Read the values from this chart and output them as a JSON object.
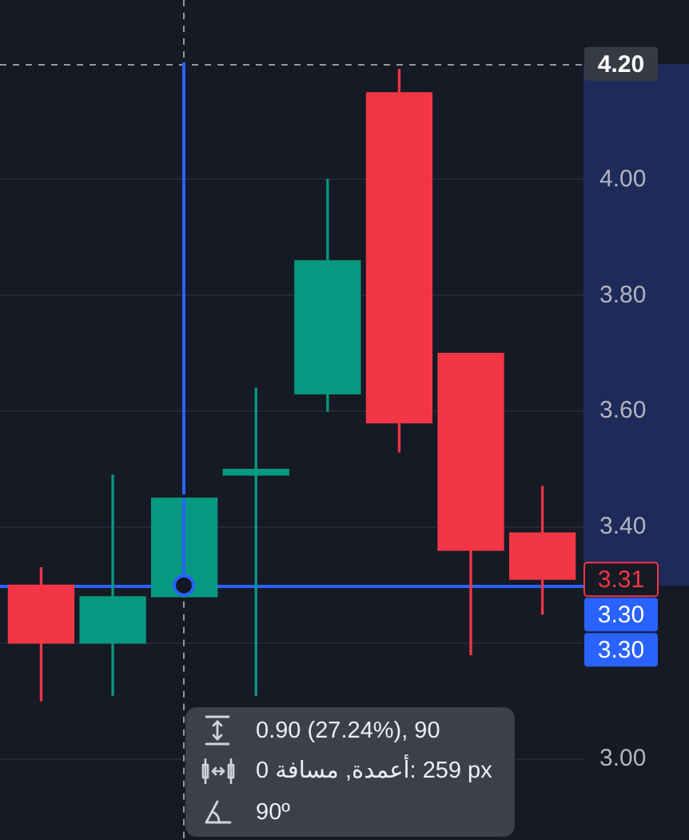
{
  "chart_data": {
    "type": "candlestick",
    "categories": [
      null,
      null,
      null,
      null,
      null,
      null,
      null,
      null
    ],
    "ohlc": [
      [
        3.3,
        3.33,
        3.1,
        3.2
      ],
      [
        3.2,
        3.49,
        3.11,
        3.28
      ],
      [
        3.28,
        3.45,
        3.28,
        3.45
      ],
      [
        3.49,
        3.64,
        3.11,
        3.5
      ],
      [
        3.63,
        4.0,
        3.6,
        3.86
      ],
      [
        4.15,
        4.19,
        3.53,
        3.58
      ],
      [
        3.7,
        3.7,
        3.18,
        3.36
      ],
      [
        3.39,
        3.47,
        3.25,
        3.31
      ]
    ],
    "colors": [
      "#f23645",
      "#089981",
      "#089981",
      "#089981",
      "#089981",
      "#f23645",
      "#f23645",
      "#f23645"
    ],
    "ylim": [
      2.86,
      4.31
    ],
    "yticks": [
      {
        "value": 3,
        "label": "3.00"
      },
      {
        "value": 3.2,
        "label": null
      },
      {
        "value": 3.4,
        "label": "3.40"
      },
      {
        "value": 3.6,
        "label": "3.60"
      },
      {
        "value": 3.8,
        "label": "3.80"
      },
      {
        "value": 4,
        "label": "4.00"
      }
    ],
    "grid": "y",
    "tick_labels": "y",
    "ref_lines": [
      {
        "axis": "y",
        "value": 4.2,
        "label": "4.20",
        "color": "#9598a1",
        "line_style": "dashed"
      },
      {
        "axis": "y",
        "value": 3.3,
        "label": "3.30",
        "color": "#2962ff",
        "line_style": "solid"
      }
    ],
    "annotations": [
      "3.31",
      "3.30",
      "0.90 (27.24%), 90",
      "0 أعمدة, مسافة: 259 px",
      "90º"
    ]
  }
}
